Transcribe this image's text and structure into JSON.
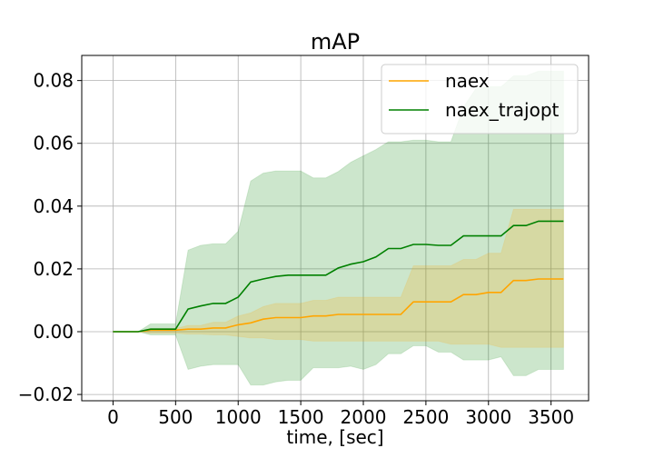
{
  "chart_data": {
    "type": "line",
    "title": "mAP",
    "xlabel": "time, [sec]",
    "ylabel": "",
    "xlim": [
      -250,
      3800
    ],
    "ylim": [
      -0.022,
      0.088
    ],
    "xticks": [
      0,
      500,
      1000,
      1500,
      2000,
      2500,
      3000,
      3500
    ],
    "yticks": [
      -0.02,
      0.0,
      0.02,
      0.04,
      0.06,
      0.08
    ],
    "xtick_labels": [
      "0",
      "500",
      "1000",
      "1500",
      "2000",
      "2500",
      "3000",
      "3500"
    ],
    "ytick_labels": [
      "−0.02",
      "0.00",
      "0.02",
      "0.04",
      "0.06",
      "0.08"
    ],
    "grid": true,
    "legend_position": "top-right",
    "x": [
      0,
      100,
      200,
      300,
      400,
      500,
      600,
      700,
      800,
      900,
      1000,
      1100,
      1200,
      1300,
      1400,
      1500,
      1600,
      1700,
      1800,
      1900,
      2000,
      2100,
      2200,
      2300,
      2400,
      2500,
      2600,
      2700,
      2800,
      2900,
      3000,
      3100,
      3200,
      3300,
      3400,
      3500,
      3600
    ],
    "series": [
      {
        "name": "naex",
        "color": "#ffa500",
        "values": [
          0,
          0,
          0,
          0.0005,
          0.0005,
          0.0005,
          0.0008,
          0.0008,
          0.0012,
          0.0012,
          0.0022,
          0.0028,
          0.004,
          0.0045,
          0.0045,
          0.0045,
          0.005,
          0.005,
          0.0055,
          0.0055,
          0.0055,
          0.0055,
          0.0055,
          0.0055,
          0.0095,
          0.0095,
          0.0095,
          0.0095,
          0.0118,
          0.0118,
          0.0125,
          0.0125,
          0.0163,
          0.0163,
          0.0168,
          0.0168,
          0.0168
        ],
        "upper": [
          0,
          0,
          0,
          0.001,
          0.001,
          0.001,
          0.002,
          0.002,
          0.003,
          0.003,
          0.005,
          0.006,
          0.008,
          0.009,
          0.009,
          0.009,
          0.01,
          0.01,
          0.011,
          0.011,
          0.011,
          0.011,
          0.011,
          0.011,
          0.021,
          0.021,
          0.021,
          0.021,
          0.023,
          0.023,
          0.025,
          0.025,
          0.039,
          0.039,
          0.039,
          0.039,
          0.039
        ],
        "lower": [
          0,
          0,
          0,
          -0.0005,
          -0.0005,
          -0.0005,
          -0.0008,
          -0.0008,
          -0.001,
          -0.001,
          -0.0015,
          -0.002,
          -0.002,
          -0.0025,
          -0.0025,
          -0.0025,
          -0.003,
          -0.003,
          -0.003,
          -0.003,
          -0.003,
          -0.003,
          -0.003,
          -0.003,
          -0.003,
          -0.003,
          -0.003,
          -0.004,
          -0.004,
          -0.004,
          -0.004,
          -0.005,
          -0.005,
          -0.005,
          -0.005,
          -0.005,
          -0.005
        ]
      },
      {
        "name": "naex_trajopt",
        "color": "#008000",
        "values": [
          0,
          0,
          0,
          0.0008,
          0.0008,
          0.0008,
          0.0072,
          0.0082,
          0.009,
          0.009,
          0.011,
          0.0158,
          0.0168,
          0.0176,
          0.018,
          0.018,
          0.018,
          0.018,
          0.0203,
          0.0215,
          0.0223,
          0.0238,
          0.0265,
          0.0265,
          0.0278,
          0.0278,
          0.0275,
          0.0275,
          0.0305,
          0.0305,
          0.0305,
          0.0305,
          0.0338,
          0.0338,
          0.0352,
          0.0352,
          0.0352
        ],
        "upper": [
          0,
          0,
          0,
          0.0025,
          0.0025,
          0.0025,
          0.026,
          0.0275,
          0.028,
          0.028,
          0.032,
          0.048,
          0.0505,
          0.0512,
          0.0512,
          0.0512,
          0.049,
          0.049,
          0.051,
          0.054,
          0.056,
          0.058,
          0.0605,
          0.0605,
          0.061,
          0.061,
          0.0605,
          0.0605,
          0.0715,
          0.0775,
          0.078,
          0.078,
          0.0815,
          0.0815,
          0.083,
          0.083,
          0.083
        ],
        "lower": [
          0,
          0,
          0,
          -0.001,
          -0.001,
          -0.001,
          -0.012,
          -0.011,
          -0.0105,
          -0.0105,
          -0.0105,
          -0.017,
          -0.017,
          -0.016,
          -0.0155,
          -0.0155,
          -0.0115,
          -0.0115,
          -0.0115,
          -0.011,
          -0.012,
          -0.0105,
          -0.007,
          -0.007,
          -0.0045,
          -0.0045,
          -0.0065,
          -0.0065,
          -0.009,
          -0.009,
          -0.009,
          -0.008,
          -0.014,
          -0.014,
          -0.012,
          -0.012,
          -0.012
        ]
      }
    ]
  }
}
